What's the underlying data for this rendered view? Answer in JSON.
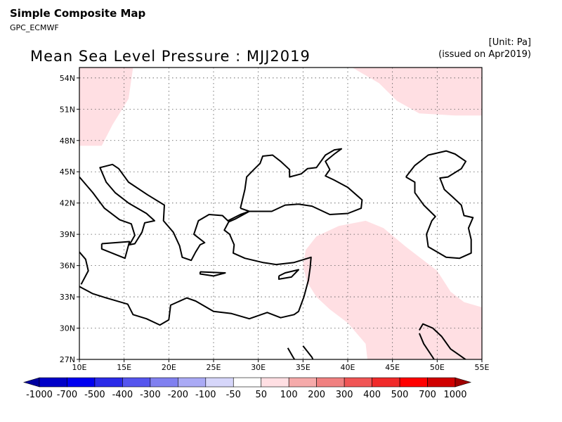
{
  "header": {
    "app_title": "Simple Composite Map",
    "app_subtitle": "GPC_ECMWF",
    "unit_note": "[Unit: Pa]",
    "issued_note": "(issued on Apr2019)",
    "map_title": "Mean Sea Level Pressure : MJJ2019"
  },
  "map": {
    "lon_range": [
      10,
      55
    ],
    "lat_range": [
      27,
      55
    ],
    "lon_ticks": [
      {
        "value": 10,
        "label": "10E"
      },
      {
        "value": 15,
        "label": "15E"
      },
      {
        "value": 20,
        "label": "20E"
      },
      {
        "value": 25,
        "label": "25E"
      },
      {
        "value": 30,
        "label": "30E"
      },
      {
        "value": 35,
        "label": "35E"
      },
      {
        "value": 40,
        "label": "40E"
      },
      {
        "value": 45,
        "label": "45E"
      },
      {
        "value": 50,
        "label": "50E"
      },
      {
        "value": 55,
        "label": "55E"
      }
    ],
    "lat_ticks": [
      {
        "value": 27,
        "label": "27N"
      },
      {
        "value": 30,
        "label": "30N"
      },
      {
        "value": 33,
        "label": "33N"
      },
      {
        "value": 36,
        "label": "36N"
      },
      {
        "value": 39,
        "label": "39N"
      },
      {
        "value": 42,
        "label": "42N"
      },
      {
        "value": 45,
        "label": "45N"
      },
      {
        "value": 48,
        "label": "48N"
      },
      {
        "value": 51,
        "label": "51N"
      },
      {
        "value": 54,
        "label": "54N"
      }
    ],
    "anomaly_regions": [
      {
        "name": "northwest",
        "class": "50 to 100 Pa",
        "color": "#ffdfe3",
        "points": [
          [
            10,
            55
          ],
          [
            16,
            55
          ],
          [
            15.5,
            52
          ],
          [
            13.7,
            49.5
          ],
          [
            12.5,
            47.5
          ],
          [
            10,
            47.5
          ]
        ]
      },
      {
        "name": "northeast",
        "class": "50 to 100 Pa",
        "color": "#ffdfe3",
        "points": [
          [
            40.5,
            55
          ],
          [
            55,
            55
          ],
          [
            55,
            50.4
          ],
          [
            52,
            50.4
          ],
          [
            48,
            50.6
          ],
          [
            45.5,
            51.8
          ],
          [
            43.5,
            53.5
          ]
        ]
      },
      {
        "name": "southeast",
        "class": "50 to 100 Pa",
        "color": "#ffdfe3",
        "points": [
          [
            35.3,
            37.5
          ],
          [
            36.5,
            38.8
          ],
          [
            39,
            39.8
          ],
          [
            42,
            40.3
          ],
          [
            44,
            39.6
          ],
          [
            46.5,
            37.8
          ],
          [
            50,
            35.5
          ],
          [
            51.5,
            33.5
          ],
          [
            53,
            32.5
          ],
          [
            55,
            32
          ],
          [
            55,
            27
          ],
          [
            42.2,
            27
          ],
          [
            42,
            28.5
          ],
          [
            40,
            30.5
          ],
          [
            38,
            31.8
          ],
          [
            36.5,
            33
          ],
          [
            35.4,
            34.5
          ],
          [
            35,
            36
          ]
        ]
      }
    ],
    "coastlines": [
      {
        "name": "italy-balkans-turkey-levant-africa",
        "points": [
          [
            10,
            44.5
          ],
          [
            11.5,
            43
          ],
          [
            12.8,
            41.5
          ],
          [
            14.5,
            40.4
          ],
          [
            15.8,
            40
          ],
          [
            16.2,
            38.9
          ],
          [
            15.6,
            38
          ],
          [
            16.2,
            38.1
          ],
          [
            17,
            39.2
          ],
          [
            17.3,
            40.1
          ],
          [
            18.4,
            40.3
          ],
          [
            17.5,
            41
          ],
          [
            15.5,
            42
          ],
          [
            14,
            43
          ],
          [
            13,
            44
          ],
          [
            12.3,
            45.4
          ],
          [
            13.7,
            45.7
          ],
          [
            14.4,
            45.3
          ],
          [
            15.5,
            44
          ],
          [
            17.6,
            42.8
          ],
          [
            19.5,
            41.8
          ],
          [
            19.4,
            40.3
          ],
          [
            20.5,
            39.2
          ],
          [
            21.2,
            37.9
          ],
          [
            21.5,
            36.8
          ],
          [
            22.5,
            36.5
          ],
          [
            23,
            37.3
          ],
          [
            23.5,
            38
          ],
          [
            24,
            38.2
          ],
          [
            22.8,
            39
          ],
          [
            23.3,
            40.3
          ],
          [
            24.5,
            40.9
          ],
          [
            26,
            40.8
          ],
          [
            26.6,
            40.3
          ],
          [
            28,
            40.9
          ],
          [
            29,
            41.2
          ],
          [
            27.5,
            40.5
          ],
          [
            26.7,
            40.2
          ],
          [
            26.2,
            39.4
          ],
          [
            26.8,
            39
          ],
          [
            27.3,
            38
          ],
          [
            27.2,
            37.2
          ],
          [
            28.5,
            36.7
          ],
          [
            30.5,
            36.3
          ],
          [
            32,
            36.1
          ],
          [
            34,
            36.3
          ],
          [
            35.9,
            36.8
          ],
          [
            35.8,
            35.8
          ],
          [
            35.6,
            34.6
          ],
          [
            35.1,
            33
          ],
          [
            34.5,
            31.6
          ],
          [
            34,
            31.3
          ],
          [
            32.5,
            31
          ],
          [
            31,
            31.5
          ],
          [
            29,
            30.9
          ],
          [
            27,
            31.4
          ],
          [
            25,
            31.6
          ],
          [
            23,
            32.6
          ],
          [
            22,
            32.9
          ],
          [
            20.2,
            32.2
          ],
          [
            20,
            30.8
          ],
          [
            19,
            30.3
          ],
          [
            17.5,
            30.9
          ],
          [
            16,
            31.3
          ],
          [
            15.4,
            32.3
          ],
          [
            13,
            32.9
          ],
          [
            11.5,
            33.3
          ],
          [
            10.2,
            33.9
          ],
          [
            10,
            34
          ]
        ]
      },
      {
        "name": "tunisia-north",
        "points": [
          [
            10,
            37.3
          ],
          [
            10.7,
            36.6
          ],
          [
            11,
            35.5
          ],
          [
            10.2,
            34.2
          ]
        ]
      },
      {
        "name": "sicily",
        "points": [
          [
            12.5,
            38.1
          ],
          [
            15.6,
            38.3
          ],
          [
            15.1,
            36.7
          ],
          [
            12.5,
            37.6
          ],
          [
            12.5,
            38.1
          ]
        ]
      },
      {
        "name": "crete",
        "points": [
          [
            23.5,
            35.4
          ],
          [
            26.3,
            35.3
          ],
          [
            25,
            35
          ],
          [
            23.5,
            35.2
          ],
          [
            23.5,
            35.4
          ]
        ]
      },
      {
        "name": "cyprus",
        "points": [
          [
            32.3,
            35
          ],
          [
            33,
            35.3
          ],
          [
            34.5,
            35.6
          ],
          [
            33.7,
            34.9
          ],
          [
            32.3,
            34.7
          ],
          [
            32.3,
            35
          ]
        ]
      },
      {
        "name": "black-sea",
        "points": [
          [
            28,
            41.5
          ],
          [
            28.5,
            43.3
          ],
          [
            28.7,
            44.5
          ],
          [
            29.6,
            45.3
          ],
          [
            30.2,
            45.8
          ],
          [
            30.5,
            46.5
          ],
          [
            31.6,
            46.6
          ],
          [
            32.5,
            46
          ],
          [
            33.5,
            45.2
          ],
          [
            33.5,
            44.5
          ],
          [
            34.8,
            44.8
          ],
          [
            35.5,
            45.3
          ],
          [
            36.5,
            45.4
          ],
          [
            37.5,
            46.6
          ],
          [
            38.5,
            47.1
          ],
          [
            39.3,
            47.2
          ],
          [
            38.5,
            46.7
          ],
          [
            37.5,
            46
          ],
          [
            38,
            45.2
          ],
          [
            37.5,
            44.6
          ],
          [
            38.5,
            44.2
          ],
          [
            40,
            43.5
          ],
          [
            41.6,
            42.3
          ],
          [
            41.5,
            41.5
          ],
          [
            40,
            41
          ],
          [
            38,
            40.9
          ],
          [
            36,
            41.7
          ],
          [
            34.5,
            41.9
          ],
          [
            33,
            41.8
          ],
          [
            31.5,
            41.2
          ],
          [
            29,
            41.2
          ],
          [
            28,
            41.5
          ]
        ]
      },
      {
        "name": "caspian",
        "points": [
          [
            46.5,
            44.5
          ],
          [
            47.5,
            45.6
          ],
          [
            49,
            46.6
          ],
          [
            51,
            47
          ],
          [
            52,
            46.7
          ],
          [
            53.2,
            46
          ],
          [
            52.7,
            45.3
          ],
          [
            51.2,
            44.5
          ],
          [
            50.3,
            44.4
          ],
          [
            50.8,
            43.3
          ],
          [
            51.7,
            42.6
          ],
          [
            52.7,
            41.8
          ],
          [
            53,
            40.8
          ],
          [
            54,
            40.6
          ],
          [
            53.5,
            39.6
          ],
          [
            53.8,
            38.5
          ],
          [
            53.8,
            37.2
          ],
          [
            52.5,
            36.7
          ],
          [
            51,
            36.8
          ],
          [
            50,
            37.3
          ],
          [
            49,
            37.8
          ],
          [
            48.8,
            39
          ],
          [
            49.4,
            40.3
          ],
          [
            49.8,
            40.7
          ],
          [
            48.5,
            41.8
          ],
          [
            47.5,
            43
          ],
          [
            47.5,
            44
          ],
          [
            46.5,
            44.5
          ]
        ]
      },
      {
        "name": "red-sea-east",
        "points": [
          [
            35,
            28.3
          ],
          [
            36,
            27.2
          ],
          [
            36.6,
            26
          ]
        ]
      },
      {
        "name": "red-sea-west",
        "points": [
          [
            33.3,
            28.1
          ],
          [
            33.9,
            27.2
          ],
          [
            34.5,
            26.4
          ]
        ]
      },
      {
        "name": "persian-gulf",
        "points": [
          [
            48,
            29.8
          ],
          [
            48.4,
            30.4
          ],
          [
            49.5,
            30
          ],
          [
            50.5,
            29.2
          ],
          [
            51.5,
            28
          ],
          [
            52.5,
            27.4
          ],
          [
            53.5,
            26.8
          ],
          [
            55,
            26.6
          ]
        ]
      },
      {
        "name": "kuwait",
        "points": [
          [
            48,
            29.5
          ],
          [
            48.5,
            28.5
          ],
          [
            49.5,
            27.2
          ],
          [
            50,
            26.5
          ]
        ]
      }
    ],
    "legend": {
      "labels": [
        "-1000",
        "-700",
        "-500",
        "-400",
        "-300",
        "-200",
        "-100",
        "-50",
        "50",
        "100",
        "200",
        "300",
        "400",
        "500",
        "700",
        "1000"
      ],
      "colors": [
        "#0000a0",
        "#0000c8",
        "#0000f0",
        "#2a2ae8",
        "#5555ee",
        "#8080f0",
        "#aaaaf5",
        "#d6d6fa",
        "#ffffff",
        "#ffdfe3",
        "#f5aaaa",
        "#f08080",
        "#f05555",
        "#f02a2a",
        "#ff0000",
        "#d00000",
        "#a00000"
      ]
    }
  }
}
